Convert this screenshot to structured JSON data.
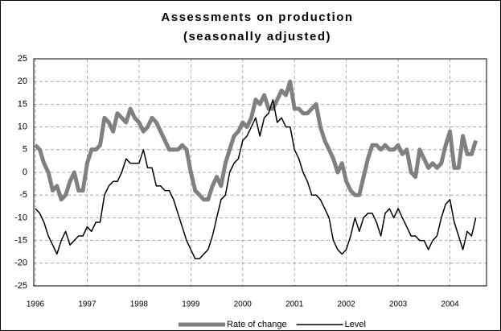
{
  "chart_data": {
    "type": "line",
    "title": "Assessments on production",
    "subtitle": "(seasonally adjusted)",
    "categories": [
      "1996",
      null,
      null,
      null,
      null,
      null,
      null,
      null,
      null,
      null,
      null,
      null,
      "1997",
      null,
      null,
      null,
      null,
      null,
      null,
      null,
      null,
      null,
      null,
      null,
      "1998",
      null,
      null,
      null,
      null,
      null,
      null,
      null,
      null,
      null,
      null,
      null,
      "1999",
      null,
      null,
      null,
      null,
      null,
      null,
      null,
      null,
      null,
      null,
      null,
      "2000",
      null,
      null,
      null,
      null,
      null,
      null,
      null,
      null,
      null,
      null,
      null,
      "2001",
      null,
      null,
      null,
      null,
      null,
      null,
      null,
      null,
      null,
      null,
      null,
      "2002",
      null,
      null,
      null,
      null,
      null,
      null,
      null,
      null,
      null,
      null,
      null,
      "2003",
      null,
      null,
      null,
      null,
      null,
      null,
      null,
      null,
      null,
      null,
      null,
      "2004",
      null,
      null,
      null,
      null,
      null,
      null
    ],
    "series": [
      {
        "name": "Rate of change",
        "color": "#808080",
        "width": 5,
        "values": [
          6,
          5,
          2,
          0,
          -4,
          -3,
          -6,
          -5,
          -2,
          0,
          -4,
          -4,
          2,
          5,
          5,
          6,
          12,
          11,
          9,
          13,
          12,
          11,
          14,
          12,
          11,
          9,
          10,
          12,
          11,
          9,
          7,
          5,
          5,
          5,
          6,
          5,
          0,
          -4,
          -5,
          -6,
          -6,
          -3,
          -1,
          -3,
          2,
          5,
          8,
          9,
          11,
          10,
          12,
          16,
          15,
          17,
          14,
          14,
          16,
          18,
          17,
          20,
          14,
          14,
          13,
          13,
          14,
          15,
          10,
          7,
          5,
          3,
          0,
          2,
          -2,
          -4,
          -5,
          -5,
          -1,
          3,
          6,
          6,
          5,
          6,
          5,
          5,
          6,
          4,
          5,
          0,
          -1,
          5,
          3,
          1,
          2,
          1,
          2,
          6,
          9,
          1,
          1,
          8,
          4,
          4,
          7
        ]
      },
      {
        "name": "Level",
        "color": "#000000",
        "width": 1.5,
        "values": [
          -8,
          -9,
          -11,
          -14,
          -16,
          -18,
          -15,
          -13,
          -16,
          -15,
          -14,
          -14,
          -12,
          -13,
          -11,
          -11,
          -5,
          -3,
          -2,
          -2,
          0,
          3,
          2,
          2,
          2,
          5,
          1,
          1,
          -3,
          -3,
          -4,
          -4,
          -6,
          -9,
          -12,
          -15,
          -17,
          -19,
          -19,
          -18,
          -17,
          -14,
          -10,
          -6,
          -5,
          0,
          2,
          3,
          7,
          8,
          10,
          12,
          8,
          12,
          13,
          16,
          11,
          12,
          10,
          10,
          5,
          3,
          0,
          -2,
          -5,
          -5,
          -6,
          -8,
          -10,
          -15,
          -17,
          -18,
          -17,
          -14,
          -10,
          -13,
          -10,
          -9,
          -9,
          -11,
          -14,
          -9,
          -8,
          -10,
          -8,
          -10,
          -12,
          -14,
          -14,
          -15,
          -15,
          -17,
          -15,
          -14,
          -10,
          -7,
          -6,
          -11,
          -14,
          -17,
          -13,
          -14,
          -10
        ]
      }
    ],
    "ylim": [
      -25,
      25
    ],
    "yticks": [
      -25,
      -20,
      -15,
      -10,
      -5,
      0,
      5,
      10,
      15,
      20,
      25
    ],
    "grid": true,
    "legend": "bottom"
  }
}
